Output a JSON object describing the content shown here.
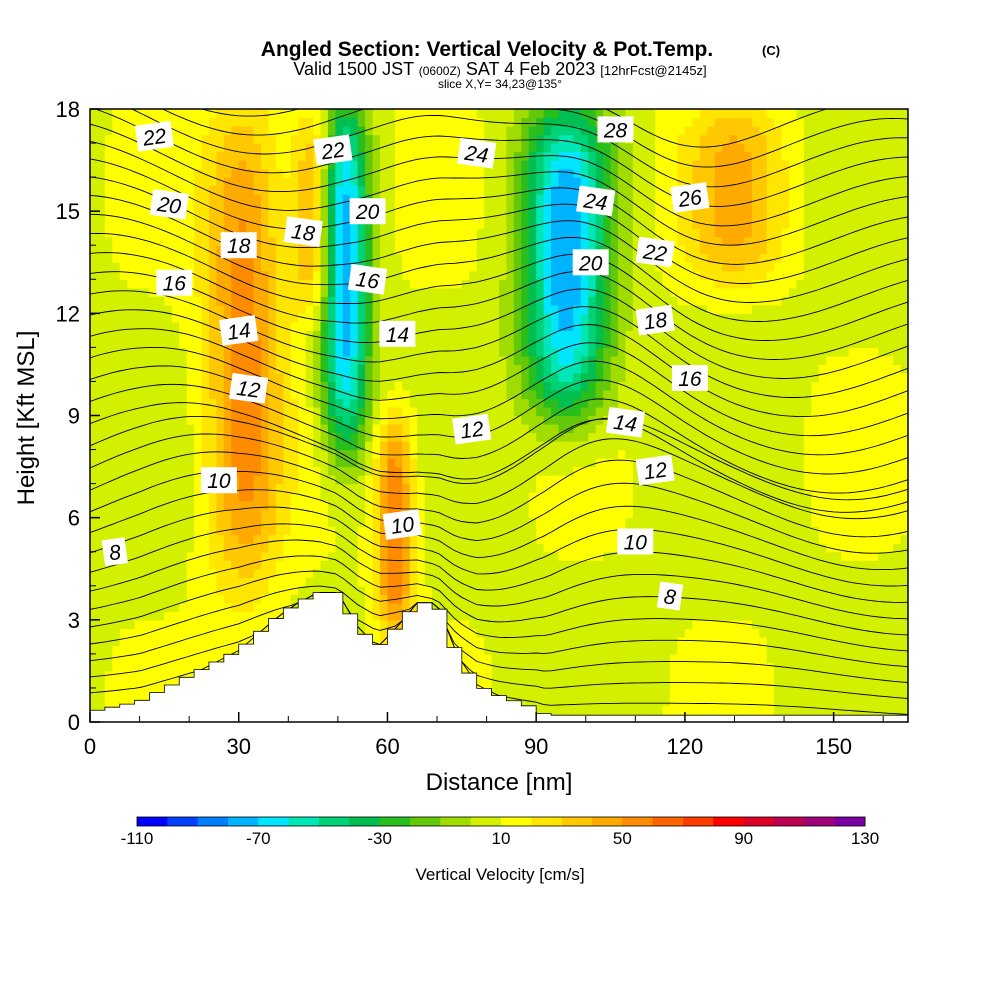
{
  "header": {
    "title": "Angled Section: Vertical Velocity & Pot.Temp.",
    "copyright": "(C)",
    "valid_prefix": "Valid 1500 JST",
    "utc": "(0600Z)",
    "date": "SAT 4 Feb 2023",
    "forecast": "[12hrFcst@2145z]",
    "slice": "slice X,Y= 34,23@135°"
  },
  "chart_data": {
    "type": "heatmap",
    "title": "Angled Section: Vertical Velocity & Pot.Temp.",
    "xlabel": "Distance [nm]",
    "ylabel": "Height [Kft MSL]",
    "xlim": [
      0,
      165
    ],
    "ylim": [
      0,
      18
    ],
    "x_ticks": [
      0,
      30,
      60,
      90,
      120,
      150
    ],
    "y_ticks": [
      0,
      3,
      6,
      9,
      12,
      15,
      18
    ],
    "colorbar": {
      "label": "Vertical Velocity [cm/s]",
      "min": -110,
      "max": 130,
      "step": 10,
      "tick_values": [
        -110,
        -70,
        -30,
        10,
        50,
        90,
        130
      ],
      "colors": [
        "#0000ff",
        "#0040ff",
        "#0080ff",
        "#00b4ff",
        "#00e6ff",
        "#00e6b4",
        "#00d278",
        "#00be50",
        "#28be1e",
        "#64c80a",
        "#a0dc00",
        "#d2f000",
        "#ffff00",
        "#ffe600",
        "#ffc800",
        "#ffaa00",
        "#ff8c00",
        "#ff6400",
        "#ff3c00",
        "#ff0000",
        "#dc0028",
        "#be0050",
        "#a00078",
        "#7800a0"
      ]
    },
    "vertical_velocity_features": [
      {
        "kind": "updraft",
        "x_range": [
          22,
          40
        ],
        "y_range": [
          4,
          18
        ],
        "peak_cm_s": 55
      },
      {
        "kind": "updraft",
        "x_range": [
          40,
          50
        ],
        "y_range": [
          12,
          18
        ],
        "peak_cm_s": 45
      },
      {
        "kind": "downdraft",
        "x_range": [
          46,
          57
        ],
        "y_range": [
          8,
          18
        ],
        "peak_cm_s": -75
      },
      {
        "kind": "updraft",
        "x_range": [
          57,
          66
        ],
        "y_range": [
          2.5,
          9
        ],
        "peak_cm_s": 60
      },
      {
        "kind": "downdraft",
        "x_range": [
          86,
          106
        ],
        "y_range": [
          9,
          18
        ],
        "peak_cm_s": -75
      },
      {
        "kind": "updraft",
        "x_range": [
          118,
          142
        ],
        "y_range": [
          13,
          18
        ],
        "peak_cm_s": 40
      }
    ],
    "terrain_kft": {
      "x": [
        0,
        10,
        14,
        18,
        22,
        26,
        30,
        34,
        38,
        42,
        46,
        50,
        54,
        58,
        62,
        66,
        70,
        74,
        78,
        82,
        86,
        90,
        92,
        165
      ],
      "y": [
        0.3,
        0.6,
        0.9,
        1.2,
        1.5,
        1.8,
        2.1,
        2.6,
        3.1,
        3.5,
        3.8,
        3.8,
        2.8,
        2.2,
        2.8,
        3.5,
        3.5,
        2.0,
        1.1,
        0.8,
        0.6,
        0.4,
        0.2,
        0.2
      ]
    },
    "theta_contours": {
      "labeled_levels": [
        8,
        10,
        12,
        14,
        16,
        18,
        20,
        22,
        24,
        26,
        28
      ],
      "labels": [
        {
          "text": "8",
          "x": 5,
          "y": 5.0
        },
        {
          "text": "10",
          "x": 26,
          "y": 7.1
        },
        {
          "text": "12",
          "x": 32,
          "y": 9.8
        },
        {
          "text": "14",
          "x": 30,
          "y": 11.5
        },
        {
          "text": "16",
          "x": 17,
          "y": 12.9
        },
        {
          "text": "20",
          "x": 16,
          "y": 15.2
        },
        {
          "text": "22",
          "x": 13,
          "y": 17.2
        },
        {
          "text": "18",
          "x": 30,
          "y": 14.0
        },
        {
          "text": "18",
          "x": 43,
          "y": 14.4
        },
        {
          "text": "22",
          "x": 49,
          "y": 16.8
        },
        {
          "text": "20",
          "x": 56,
          "y": 15.0
        },
        {
          "text": "16",
          "x": 56,
          "y": 13.0
        },
        {
          "text": "10",
          "x": 63,
          "y": 5.8
        },
        {
          "text": "14",
          "x": 62,
          "y": 11.4
        },
        {
          "text": "24",
          "x": 78,
          "y": 16.7
        },
        {
          "text": "12",
          "x": 77,
          "y": 8.6
        },
        {
          "text": "28",
          "x": 106,
          "y": 17.4
        },
        {
          "text": "24",
          "x": 102,
          "y": 15.3
        },
        {
          "text": "26",
          "x": 121,
          "y": 15.4
        },
        {
          "text": "20",
          "x": 101,
          "y": 13.5
        },
        {
          "text": "22",
          "x": 114,
          "y": 13.8
        },
        {
          "text": "18",
          "x": 114,
          "y": 11.8
        },
        {
          "text": "16",
          "x": 121,
          "y": 10.1
        },
        {
          "text": "14",
          "x": 108,
          "y": 8.8
        },
        {
          "text": "12",
          "x": 114,
          "y": 7.4
        },
        {
          "text": "10",
          "x": 110,
          "y": 5.3
        },
        {
          "text": "8",
          "x": 117,
          "y": 3.7
        }
      ]
    }
  }
}
